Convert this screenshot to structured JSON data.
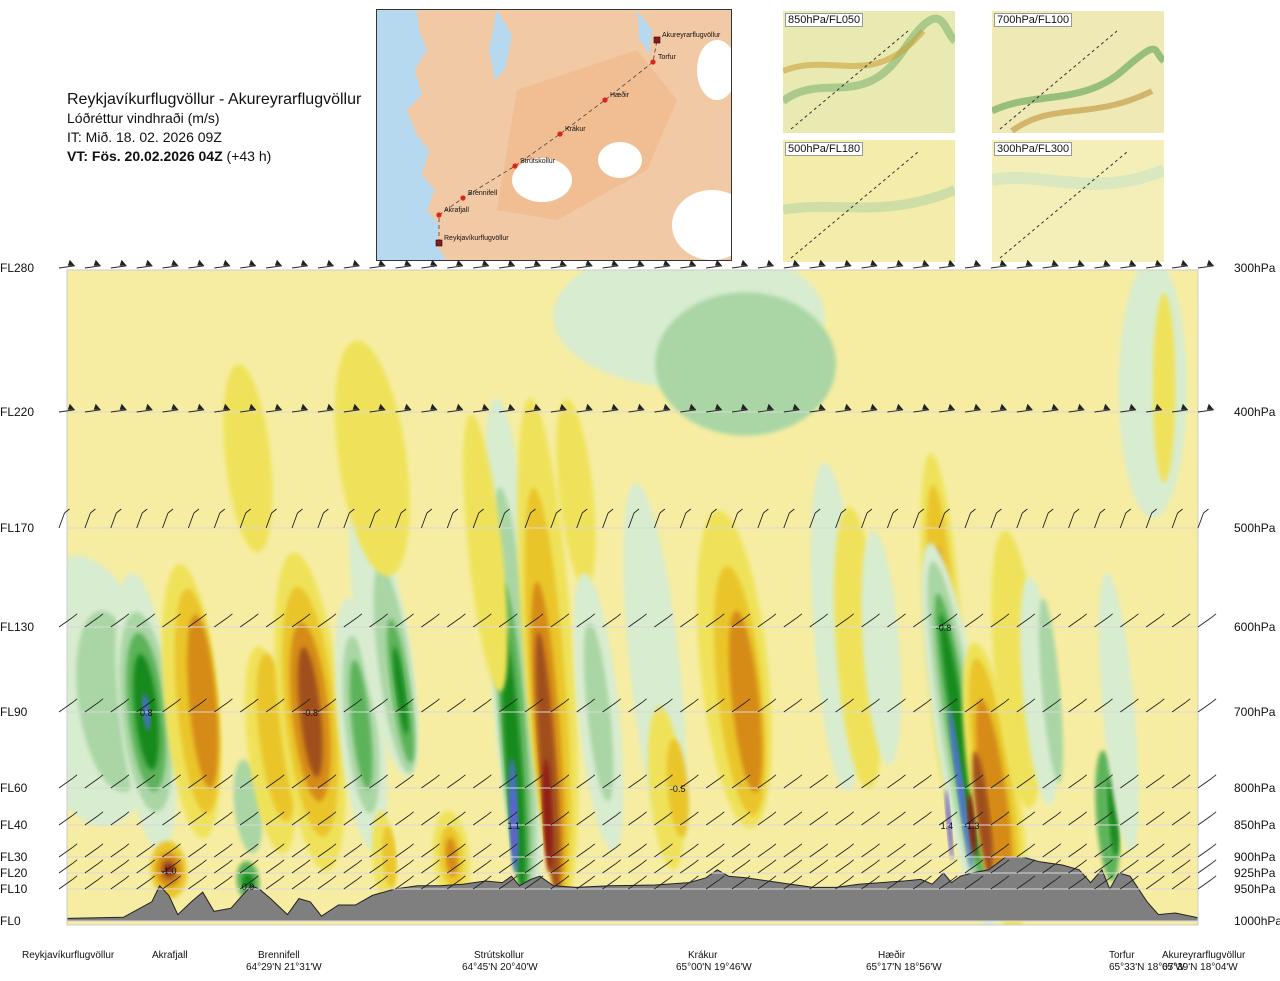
{
  "header": {
    "route": "Reykjavíkurflugvöllur - Akureyrarflugvöllur",
    "quantity": "Lóðréttur vindhraði (m/s)",
    "issue_time": "IT: Mið. 18. 02. 2026 09Z",
    "valid_label": "VT: Fös. 20.02.2026 04Z",
    "valid_offset": "(+43 h)"
  },
  "route_map": {
    "points": [
      {
        "name": "Reykjavíkurflugvöllur",
        "kind": "airport"
      },
      {
        "name": "Akrafjall",
        "kind": "waypoint"
      },
      {
        "name": "Brennifell",
        "kind": "waypoint"
      },
      {
        "name": "Strútskollur",
        "kind": "waypoint"
      },
      {
        "name": "Krákur",
        "kind": "waypoint"
      },
      {
        "name": "Hæðir",
        "kind": "waypoint"
      },
      {
        "name": "Torfur",
        "kind": "waypoint"
      },
      {
        "name": "Akureyrarflugvöllur",
        "kind": "airport"
      }
    ]
  },
  "insets": [
    {
      "label": "850hPa/FL050"
    },
    {
      "label": "700hPa/FL100"
    },
    {
      "label": "500hPa/FL180"
    },
    {
      "label": "300hPa/FL300"
    }
  ],
  "colors": {
    "neutral": "#f6eda2",
    "up1": "#d8ecd0",
    "up2": "#a9d6a4",
    "up3": "#5db35a",
    "up4": "#158a1a",
    "up5": "#4c6fcf",
    "up6": "#6a5ccc",
    "down1": "#efe25a",
    "down2": "#eac52a",
    "down3": "#d58b16",
    "down4": "#a0501c",
    "down5": "#8e1c16",
    "terrain": "#7f7f7f"
  },
  "chart_data": {
    "type": "heatmap",
    "title": "Reykjavíkurflugvöllur - Akureyrarflugvöllur",
    "quantity": "Lóðréttur vindhraði (m/s)",
    "x_range": [
      0,
      100
    ],
    "left_axis": [
      {
        "label": "FL280",
        "fl": 280
      },
      {
        "label": "FL220",
        "fl": 220
      },
      {
        "label": "FL170",
        "fl": 170
      },
      {
        "label": "FL130",
        "fl": 130
      },
      {
        "label": "FL90",
        "fl": 90
      },
      {
        "label": "FL60",
        "fl": 60
      },
      {
        "label": "FL40",
        "fl": 40
      },
      {
        "label": "FL30",
        "fl": 30
      },
      {
        "label": "FL20",
        "fl": 20
      },
      {
        "label": "FL10",
        "fl": 10
      },
      {
        "label": "FL0",
        "fl": 0
      }
    ],
    "right_axis": [
      {
        "label": "300hPa",
        "fl": 280
      },
      {
        "label": "400hPa",
        "fl": 220
      },
      {
        "label": "500hPa",
        "fl": 170
      },
      {
        "label": "600hPa",
        "fl": 130
      },
      {
        "label": "700hPa",
        "fl": 90
      },
      {
        "label": "800hPa",
        "fl": 60
      },
      {
        "label": "850hPa",
        "fl": 40
      },
      {
        "label": "900hPa",
        "fl": 30
      },
      {
        "label": "925hPa",
        "fl": 20
      },
      {
        "label": "950hPa",
        "fl": 10
      },
      {
        "label": "1000hPa",
        "fl": 0
      }
    ],
    "stations": [
      {
        "name": "Reykjavíkurflugvöllur",
        "coord": "",
        "x": 0
      },
      {
        "name": "Akrafjall",
        "coord": "",
        "x": 8
      },
      {
        "name": "Brennifell",
        "coord": "64°29'N 21°31'W",
        "x": 17
      },
      {
        "name": "Strútskollur",
        "coord": "64°45'N 20°40'W",
        "x": 39
      },
      {
        "name": "Krákur",
        "coord": "65°00'N 19°46'W",
        "x": 57
      },
      {
        "name": "Hæðir",
        "coord": "65°17'N 18°56'W",
        "x": 76
      },
      {
        "name": "Torfur",
        "coord": "65°33'N 18°07'W",
        "x": 96
      },
      {
        "name": "Akureyrarflugvöllur",
        "coord": "65°39'N 18°04'W",
        "x": 100
      }
    ],
    "extremes": [
      {
        "label": "0.8",
        "x": 7,
        "fl": 90
      },
      {
        "label": "-0.8",
        "x": 21.5,
        "fl": 90
      },
      {
        "label": "-1.0",
        "x": 9,
        "fl": 22
      },
      {
        "label": "0.9",
        "x": 16,
        "fl": 12
      },
      {
        "label": "1.1",
        "x": 39.5,
        "fl": 40
      },
      {
        "label": "-0.5",
        "x": 54,
        "fl": 60
      },
      {
        "label": "-0.8",
        "x": 77.5,
        "fl": 130
      },
      {
        "label": "1.4",
        "x": 77.8,
        "fl": 40
      },
      {
        "label": "-1.3",
        "x": 80,
        "fl": 40
      }
    ],
    "wind_barb_levels": [
      280,
      220,
      170,
      130,
      90,
      60,
      40,
      30,
      20,
      10
    ]
  }
}
